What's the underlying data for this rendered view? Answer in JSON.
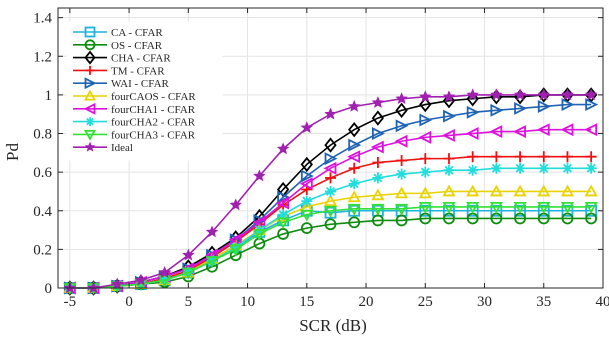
{
  "chart_data": {
    "type": "line",
    "xlabel": "SCR (dB)",
    "ylabel": "Pd",
    "xlim": [
      -6,
      40
    ],
    "ylim": [
      0,
      1.45
    ],
    "xticks": [
      -5,
      0,
      5,
      10,
      15,
      20,
      25,
      30,
      35,
      40
    ],
    "xtick_labels": [
      "-5",
      "0",
      "5",
      "10",
      "15",
      "20",
      "25",
      "30",
      "35",
      "40"
    ],
    "yticks": [
      0,
      0.2,
      0.4,
      0.6,
      0.8,
      1,
      1.2,
      1.4
    ],
    "ytick_labels": [
      "0",
      "0.2",
      "0.4",
      "0.6",
      "0.8",
      "1",
      "1.2",
      "1.4"
    ],
    "grid": true,
    "legend_position": "top-left",
    "x": [
      -5,
      -3,
      -1,
      1,
      3,
      5,
      7,
      9,
      11,
      13,
      15,
      17,
      19,
      21,
      23,
      25,
      27,
      29,
      31,
      33,
      35,
      37,
      39
    ],
    "series": [
      {
        "name": "CA - CFAR",
        "color": "#1fb3e0",
        "marker": "square",
        "values": [
          0.0,
          0.0,
          0.01,
          0.02,
          0.04,
          0.08,
          0.14,
          0.21,
          0.29,
          0.35,
          0.4,
          0.39,
          0.4,
          0.4,
          0.4,
          0.4,
          0.4,
          0.4,
          0.4,
          0.4,
          0.4,
          0.4,
          0.4
        ]
      },
      {
        "name": "OS - CFAR",
        "color": "#0e8c0e",
        "marker": "circle",
        "values": [
          0.0,
          0.0,
          0.01,
          0.02,
          0.03,
          0.06,
          0.11,
          0.17,
          0.23,
          0.28,
          0.31,
          0.33,
          0.34,
          0.35,
          0.35,
          0.36,
          0.36,
          0.36,
          0.36,
          0.36,
          0.36,
          0.36,
          0.36
        ]
      },
      {
        "name": "CHA - CFAR",
        "color": "#000000",
        "marker": "diamond",
        "values": [
          0.0,
          0.0,
          0.01,
          0.03,
          0.06,
          0.11,
          0.18,
          0.26,
          0.37,
          0.51,
          0.64,
          0.74,
          0.82,
          0.88,
          0.92,
          0.95,
          0.97,
          0.98,
          0.99,
          0.99,
          1.0,
          1.0,
          1.0
        ]
      },
      {
        "name": "TM - CFAR",
        "color": "#ee1111",
        "marker": "plus",
        "values": [
          0.0,
          0.0,
          0.01,
          0.02,
          0.05,
          0.09,
          0.16,
          0.24,
          0.33,
          0.43,
          0.51,
          0.57,
          0.62,
          0.65,
          0.66,
          0.67,
          0.67,
          0.68,
          0.68,
          0.68,
          0.68,
          0.68,
          0.68
        ]
      },
      {
        "name": "WAI - CFAR",
        "color": "#1f63b5",
        "marker": "triangle-right",
        "values": [
          0.0,
          0.0,
          0.01,
          0.03,
          0.06,
          0.1,
          0.17,
          0.25,
          0.35,
          0.47,
          0.58,
          0.67,
          0.74,
          0.8,
          0.84,
          0.87,
          0.89,
          0.91,
          0.92,
          0.93,
          0.94,
          0.95,
          0.95
        ]
      },
      {
        "name": "fourCAOS - CFAR",
        "color": "#e8d200",
        "marker": "triangle-up",
        "values": [
          0.0,
          0.0,
          0.01,
          0.02,
          0.04,
          0.08,
          0.15,
          0.22,
          0.3,
          0.37,
          0.42,
          0.45,
          0.47,
          0.48,
          0.49,
          0.49,
          0.5,
          0.5,
          0.5,
          0.5,
          0.5,
          0.5,
          0.5
        ]
      },
      {
        "name": "fourCHA1 - CFAR",
        "color": "#dd11dd",
        "marker": "triangle-left",
        "values": [
          0.0,
          0.0,
          0.01,
          0.03,
          0.06,
          0.1,
          0.17,
          0.25,
          0.34,
          0.44,
          0.54,
          0.62,
          0.68,
          0.73,
          0.76,
          0.78,
          0.79,
          0.8,
          0.81,
          0.81,
          0.82,
          0.82,
          0.82
        ]
      },
      {
        "name": "fourCHA2 - CFAR",
        "color": "#22dddd",
        "marker": "asterisk",
        "values": [
          0.0,
          0.0,
          0.01,
          0.02,
          0.04,
          0.08,
          0.14,
          0.21,
          0.3,
          0.38,
          0.45,
          0.5,
          0.54,
          0.57,
          0.59,
          0.6,
          0.61,
          0.61,
          0.62,
          0.62,
          0.62,
          0.62,
          0.62
        ]
      },
      {
        "name": "fourCHA3 - CFAR",
        "color": "#33e033",
        "marker": "triangle-down",
        "values": [
          0.0,
          0.0,
          0.01,
          0.02,
          0.04,
          0.08,
          0.14,
          0.2,
          0.28,
          0.34,
          0.38,
          0.4,
          0.41,
          0.41,
          0.41,
          0.42,
          0.42,
          0.42,
          0.42,
          0.42,
          0.42,
          0.42,
          0.42
        ]
      },
      {
        "name": "Ideal",
        "color": "#a020b0",
        "marker": "star",
        "values": [
          0.0,
          0.0,
          0.02,
          0.04,
          0.08,
          0.17,
          0.29,
          0.43,
          0.58,
          0.72,
          0.83,
          0.9,
          0.94,
          0.96,
          0.98,
          0.99,
          0.99,
          1.0,
          1.0,
          1.0,
          1.0,
          1.0,
          1.0
        ]
      }
    ]
  }
}
